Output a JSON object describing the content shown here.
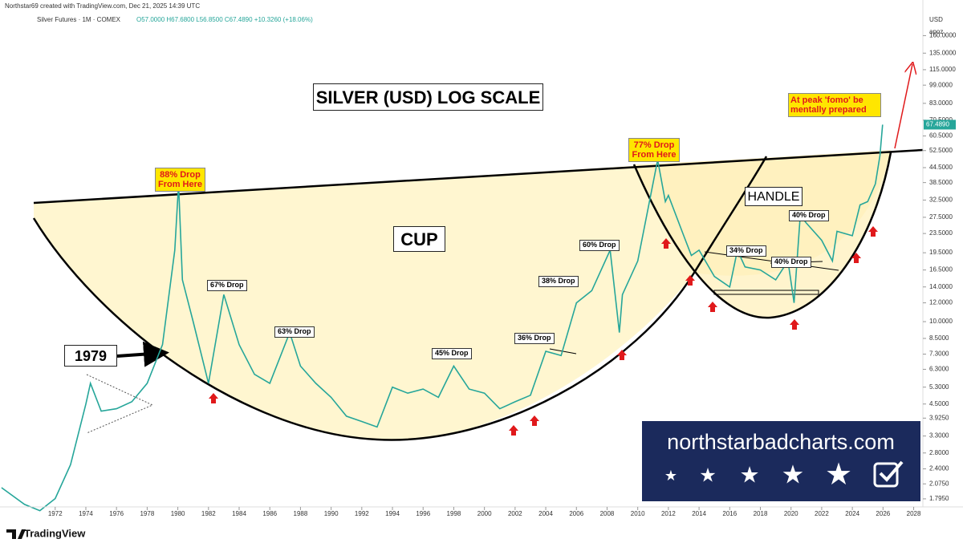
{
  "header": {
    "credit": "Northstar69 created with TradingView.com, Dec 21, 2025 14:39 UTC",
    "symbol": "Silver Futures · 1M · COMEX",
    "ohlc": "O57.0000 H67.6800 L56.8500 C67.4890 +10.3260 (+18.06%)",
    "currency": "USD",
    "unit": "apoz"
  },
  "chart_data": {
    "type": "line",
    "log_scale": true,
    "color": "#26a69a",
    "x": [
      1968.5,
      1970,
      1971,
      1972,
      1973,
      1974,
      1974.3,
      1975,
      1976,
      1977,
      1978,
      1979,
      1979.8,
      1980.05,
      1980.3,
      1981,
      1982,
      1983,
      1984,
      1985,
      1986,
      1987.3,
      1988,
      1989,
      1990,
      1991,
      1992,
      1993,
      1994,
      1995,
      1996,
      1997,
      1998,
      1999,
      2000,
      2001,
      2002,
      2003,
      2004,
      2005,
      2006,
      2007,
      2008.2,
      2008.8,
      2009,
      2010,
      2011.3,
      2011.8,
      2012,
      2013,
      2013.5,
      2014,
      2015,
      2016,
      2016.5,
      2017,
      2018,
      2019,
      2019.8,
      2020.2,
      2020.6,
      2021,
      2022,
      2022.7,
      2023,
      2024,
      2024.5,
      2025,
      2025.5,
      2025.8,
      2025.97
    ],
    "values": [
      2.0,
      1.7,
      1.6,
      1.8,
      2.5,
      4.5,
      5.5,
      4.2,
      4.3,
      4.6,
      5.5,
      8,
      20,
      38,
      15,
      10,
      5.5,
      13,
      8,
      6,
      5.5,
      9,
      6.5,
      5.5,
      4.8,
      4,
      3.8,
      3.6,
      5.3,
      5,
      5.2,
      4.8,
      6.5,
      5.2,
      5,
      4.3,
      4.6,
      4.9,
      7.5,
      7.2,
      12,
      13.5,
      20,
      9,
      13,
      18,
      48,
      32,
      34,
      23,
      19,
      20,
      15.5,
      14,
      20,
      17,
      16.5,
      15,
      18,
      12,
      28,
      26,
      22,
      18,
      24,
      23,
      31,
      32,
      38,
      50,
      67.489
    ],
    "last_price": {
      "value": 67.489,
      "label": "67.4890"
    },
    "xlim": [
      1968.4,
      2028.6
    ],
    "xticks": [
      1972,
      1974,
      1976,
      1978,
      1980,
      1982,
      1984,
      1986,
      1988,
      1990,
      1992,
      1994,
      1996,
      1998,
      2000,
      2002,
      2004,
      2006,
      2008,
      2010,
      2012,
      2014,
      2016,
      2018,
      2020,
      2022,
      2024,
      2026,
      2028
    ],
    "ylim": [
      1.66,
      226
    ],
    "yticks": [
      {
        "value": 160,
        "label": "160.0000"
      },
      {
        "value": 135,
        "label": "135.0000"
      },
      {
        "value": 115,
        "label": "115.0000"
      },
      {
        "value": 99,
        "label": "99.0000"
      },
      {
        "value": 83,
        "label": "83.0000"
      },
      {
        "value": 70.5,
        "label": "70.5000"
      },
      {
        "value": 60.5,
        "label": "60.5000"
      },
      {
        "value": 52.5,
        "label": "52.5000"
      },
      {
        "value": 44.5,
        "label": "44.5000"
      },
      {
        "value": 38.5,
        "label": "38.5000"
      },
      {
        "value": 32.5,
        "label": "32.5000"
      },
      {
        "value": 27.5,
        "label": "27.5000"
      },
      {
        "value": 23.5,
        "label": "23.5000"
      },
      {
        "value": 19.5,
        "label": "19.5000"
      },
      {
        "value": 16.5,
        "label": "16.5000"
      },
      {
        "value": 14,
        "label": "14.0000"
      },
      {
        "value": 12,
        "label": "12.0000"
      },
      {
        "value": 10,
        "label": "10.0000"
      },
      {
        "value": 8.5,
        "label": "8.5000"
      },
      {
        "value": 7.3,
        "label": "7.3000"
      },
      {
        "value": 6.3,
        "label": "6.3000"
      },
      {
        "value": 5.3,
        "label": "5.3000"
      },
      {
        "value": 4.5,
        "label": "4.5000"
      },
      {
        "value": 3.925,
        "label": "3.9250"
      },
      {
        "value": 3.3,
        "label": "3.3000"
      },
      {
        "value": 2.8,
        "label": "2.8000"
      },
      {
        "value": 2.4,
        "label": "2.4000"
      },
      {
        "value": 2.075,
        "label": "2.0750"
      },
      {
        "value": 1.795,
        "label": "1.7950"
      }
    ]
  },
  "annotations": {
    "title": "SILVER (USD) LOG SCALE",
    "cup": "CUP",
    "handle": "HANDLE",
    "year": "1979",
    "peak1980": "88% Drop From Here",
    "peak2011": "77% Drop From Here",
    "fomo": "At peak 'fomo' be mentally prepared",
    "drops": [
      "67% Drop",
      "63% Drop",
      "45% Drop",
      "36% Drop",
      "38% Drop",
      "60% Drop",
      "34% Drop",
      "40% Drop",
      "40% Drop"
    ]
  },
  "watermark": "northstarbadcharts.com",
  "logo": "TradingView"
}
